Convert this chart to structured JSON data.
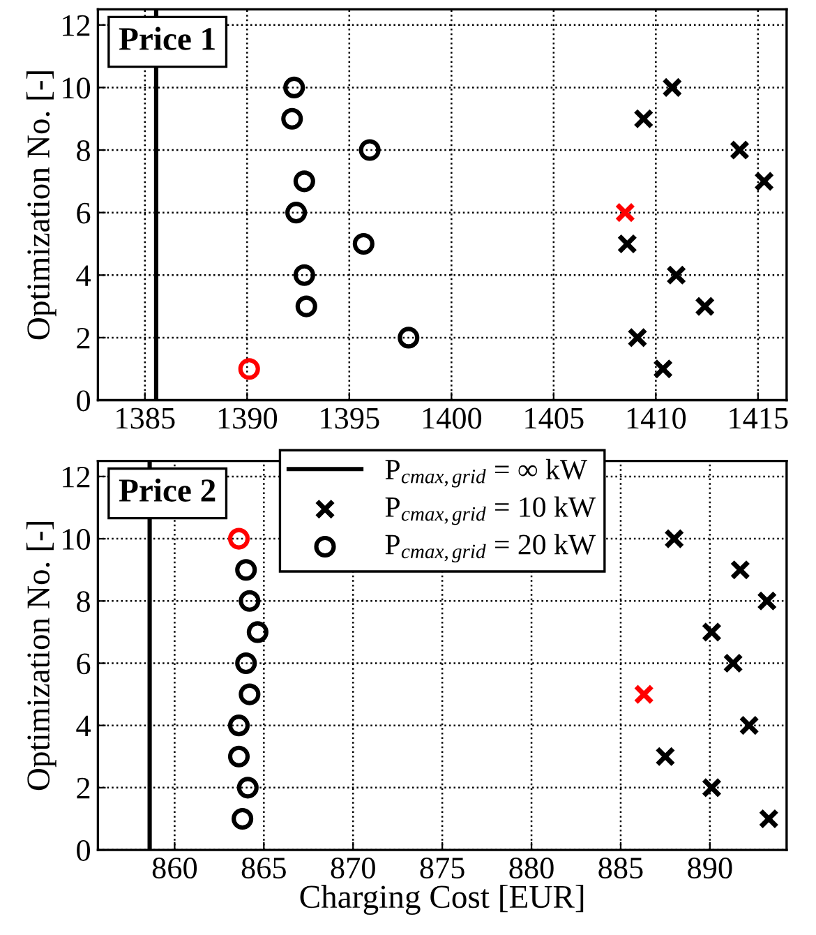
{
  "chart_data": [
    {
      "type": "scatter",
      "ylabel": "Optimization No. [-]",
      "annotations": [
        "Price 1"
      ],
      "xlim": [
        1382.7,
        1416.4
      ],
      "ylim": [
        0,
        12.5
      ],
      "xticks": [
        1385,
        1390,
        1395,
        1400,
        1405,
        1410,
        1415
      ],
      "yticks": [
        0,
        2,
        4,
        6,
        8,
        10,
        12
      ],
      "grid": true,
      "legend": false,
      "series": [
        {
          "type": "line",
          "color": "#000000",
          "line_style": "solid",
          "x": [
            1385.55,
            1385.55
          ],
          "values": [
            0,
            12.5
          ]
        },
        {
          "marker": "cross",
          "color": "#000000",
          "x": [
            1410.35,
            1409.1,
            1412.4,
            1411.0,
            1408.6,
            1408.5,
            1415.3,
            1414.1,
            1409.4,
            1410.8
          ],
          "values": [
            1,
            2,
            3,
            4,
            5,
            6,
            7,
            8,
            9,
            10
          ],
          "colors": [
            "#000000",
            "#000000",
            "#000000",
            "#000000",
            "#000000",
            "#ff0000",
            "#000000",
            "#000000",
            "#000000",
            "#000000"
          ]
        },
        {
          "marker": "circle",
          "color": "#000000",
          "x": [
            1390.1,
            1397.9,
            1392.9,
            1392.8,
            1395.7,
            1392.4,
            1392.8,
            1396.0,
            1392.2,
            1392.3
          ],
          "values": [
            1,
            2,
            3,
            4,
            5,
            6,
            7,
            8,
            9,
            10
          ],
          "colors": [
            "#ff0000",
            "#000000",
            "#000000",
            "#000000",
            "#000000",
            "#000000",
            "#000000",
            "#000000",
            "#000000",
            "#000000"
          ]
        }
      ]
    },
    {
      "type": "scatter",
      "xlabel": "Charging Cost [EUR]",
      "ylabel": "Optimization No. [-]",
      "annotations": [
        "Price 2"
      ],
      "xlim": [
        855.7,
        894.3
      ],
      "ylim": [
        0,
        12.5
      ],
      "xticks": [
        860,
        865,
        870,
        875,
        880,
        885,
        890
      ],
      "yticks": [
        0,
        2,
        4,
        6,
        8,
        10,
        12
      ],
      "grid": true,
      "legend": "top",
      "series": [
        {
          "type": "line",
          "name": "P$_{cmax,grid}$ = ∞ kW",
          "color": "#000000",
          "line_style": "solid",
          "x": [
            858.6,
            858.6
          ],
          "values": [
            0,
            12.5
          ]
        },
        {
          "name": "P$_{cmax,grid}$ = 10 kW",
          "marker": "cross",
          "color": "#000000",
          "x": [
            893.3,
            890.1,
            887.5,
            892.2,
            886.3,
            891.3,
            890.1,
            893.2,
            891.7,
            888.0
          ],
          "values": [
            1,
            2,
            3,
            4,
            5,
            6,
            7,
            8,
            9,
            10
          ],
          "colors": [
            "#000000",
            "#000000",
            "#000000",
            "#000000",
            "#ff0000",
            "#000000",
            "#000000",
            "#000000",
            "#000000",
            "#000000"
          ]
        },
        {
          "name": "P$_{cmax,grid}$ = 20 kW",
          "marker": "circle",
          "color": "#000000",
          "x": [
            863.8,
            864.1,
            863.6,
            863.6,
            864.2,
            864.0,
            864.65,
            864.2,
            864.0,
            863.6
          ],
          "values": [
            1,
            2,
            3,
            4,
            5,
            6,
            7,
            8,
            9,
            10
          ],
          "colors": [
            "#000000",
            "#000000",
            "#000000",
            "#000000",
            "#000000",
            "#000000",
            "#000000",
            "#000000",
            "#000000",
            "#ff0000"
          ]
        }
      ]
    }
  ]
}
